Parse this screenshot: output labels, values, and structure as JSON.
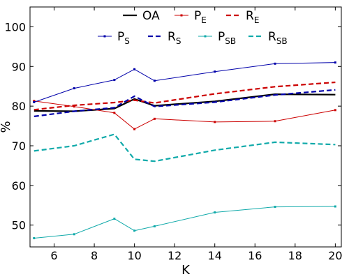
{
  "chart_data": {
    "type": "line",
    "xlabel": "K",
    "ylabel": "%",
    "xlim": [
      4.8,
      20.3
    ],
    "ylim": [
      44.5,
      105
    ],
    "xticks": [
      6,
      8,
      10,
      12,
      14,
      16,
      18,
      20
    ],
    "yticks": [
      50,
      60,
      70,
      80,
      90,
      100
    ],
    "grid": false,
    "legend_position": "top",
    "x": [
      5,
      7,
      9,
      10,
      11,
      14,
      17,
      20
    ],
    "series": [
      {
        "name": "OA",
        "main": "OA",
        "sub": "",
        "color": "#000000",
        "style": "solid",
        "width": 2.2,
        "markers": false,
        "values": [
          78.8,
          78.7,
          79.4,
          81.8,
          80.1,
          81.2,
          83.0,
          82.9
        ]
      },
      {
        "name": "PE",
        "main": "P",
        "sub": "E",
        "color": "#cc0000",
        "style": "solid",
        "width": 1,
        "markers": true,
        "values": [
          81.3,
          79.9,
          78.3,
          74.2,
          76.8,
          76.0,
          76.2,
          79.0
        ]
      },
      {
        "name": "RE",
        "main": "R",
        "sub": "E",
        "color": "#cc0000",
        "style": "dashed",
        "width": 2.2,
        "markers": false,
        "values": [
          79.1,
          80.2,
          80.9,
          81.5,
          80.8,
          83.1,
          84.9,
          86.0
        ]
      },
      {
        "name": "PS",
        "main": "P",
        "sub": "S",
        "color": "#0000aa",
        "style": "solid",
        "width": 1,
        "markers": true,
        "values": [
          81.0,
          84.5,
          86.6,
          89.3,
          86.4,
          88.7,
          90.7,
          91.0
        ]
      },
      {
        "name": "RS",
        "main": "R",
        "sub": "S",
        "color": "#0000aa",
        "style": "dashed",
        "width": 2.2,
        "markers": false,
        "values": [
          77.4,
          78.7,
          79.6,
          82.5,
          79.9,
          81.0,
          82.8,
          84.1
        ]
      },
      {
        "name": "PSB",
        "main": "P",
        "sub": "SB",
        "color": "#11aaaa",
        "style": "solid",
        "width": 1,
        "markers": true,
        "values": [
          46.7,
          47.7,
          51.6,
          48.6,
          49.7,
          53.2,
          54.6,
          54.7
        ]
      },
      {
        "name": "RSB",
        "main": "R",
        "sub": "SB",
        "color": "#11aaaa",
        "style": "dashed",
        "width": 2.2,
        "markers": false,
        "values": [
          68.7,
          70.0,
          72.9,
          66.6,
          66.1,
          68.9,
          70.9,
          70.3
        ]
      }
    ]
  }
}
